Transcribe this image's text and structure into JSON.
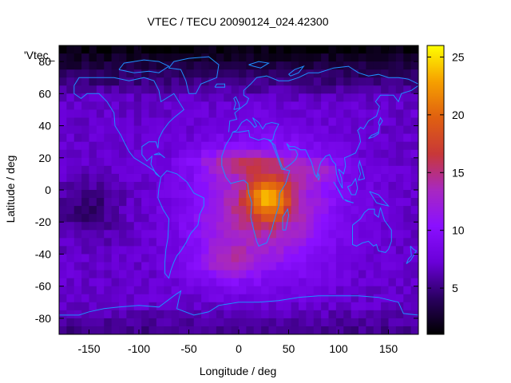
{
  "chart_data": {
    "type": "heatmap",
    "title": "VTEC / TECU 20090124_024.42300",
    "xlabel": "Longitude / deg",
    "ylabel": "Latitude / deg",
    "key_label": "'Vtec_",
    "xlim": [
      -180,
      180
    ],
    "ylim": [
      -90,
      90
    ],
    "x_ticks": [
      -150,
      -100,
      -50,
      0,
      50,
      100,
      150
    ],
    "y_ticks": [
      80,
      60,
      40,
      20,
      0,
      -20,
      -40,
      -60,
      -80
    ],
    "colorbar": {
      "range": [
        1,
        26
      ],
      "ticks": [
        5,
        10,
        15,
        20,
        25
      ],
      "palette": [
        "#000000",
        "#2a0060",
        "#6a00d8",
        "#8a10ff",
        "#a828c0",
        "#c83838",
        "#e06010",
        "#f6a000",
        "#ffff00"
      ]
    },
    "grid": false,
    "coastline_color": "#1e90ff",
    "field_features": {
      "description_hidden": "",
      "background_tecu": 7,
      "polar_north_tecu": 2,
      "peak_tecu": 26,
      "peak_lon": 30,
      "peak_lat": -5
    }
  }
}
